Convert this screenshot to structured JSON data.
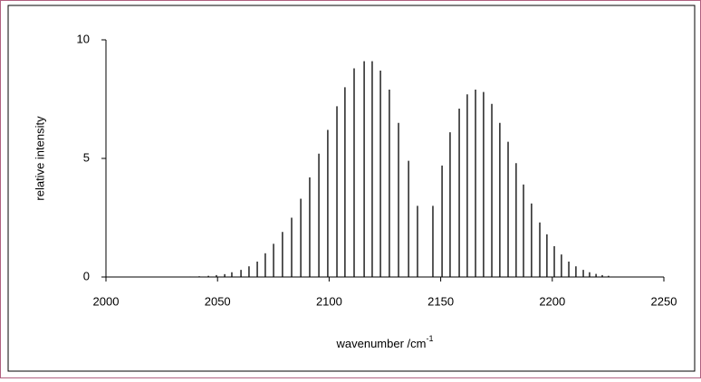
{
  "chart_data": {
    "type": "stem",
    "xlabel": "wavenumber /cm",
    "xlabel_superscript": "-1",
    "ylabel": "relative intensity",
    "color": "#000000",
    "xlim": [
      2000,
      2250
    ],
    "xticks": [
      2000,
      2050,
      2100,
      2150,
      2200,
      2250
    ],
    "ylim": [
      0,
      10
    ],
    "yticks": [
      0,
      5,
      10
    ],
    "x": [
      2037.7,
      2041.8,
      2045.9,
      2049.5,
      2053.2,
      2056.4,
      2060.5,
      2064.1,
      2067.8,
      2071.4,
      2075.1,
      2079.1,
      2083.2,
      2087.3,
      2091.3,
      2095.4,
      2099.4,
      2103.5,
      2107.1,
      2111.2,
      2115.7,
      2119.3,
      2123.0,
      2127.0,
      2131.1,
      2135.6,
      2139.6,
      2146.5,
      2150.6,
      2154.2,
      2158.3,
      2161.9,
      2165.6,
      2169.2,
      2172.9,
      2176.5,
      2180.2,
      2183.8,
      2187.1,
      2190.7,
      2194.4,
      2197.6,
      2200.9,
      2204.1,
      2207.4,
      2210.6,
      2213.9,
      2216.7,
      2219.6,
      2222.4,
      2225.2
    ],
    "values": [
      0.02,
      0.03,
      0.05,
      0.08,
      0.12,
      0.2,
      0.3,
      0.45,
      0.65,
      1.0,
      1.4,
      1.9,
      2.5,
      3.3,
      4.2,
      5.2,
      6.2,
      7.2,
      8.0,
      8.8,
      9.1,
      9.1,
      8.7,
      7.9,
      6.5,
      4.9,
      3.0,
      3.0,
      4.7,
      6.1,
      7.1,
      7.7,
      7.9,
      7.8,
      7.3,
      6.5,
      5.7,
      4.8,
      3.9,
      3.1,
      2.3,
      1.8,
      1.3,
      0.95,
      0.65,
      0.45,
      0.3,
      0.2,
      0.13,
      0.08,
      0.05
    ]
  }
}
